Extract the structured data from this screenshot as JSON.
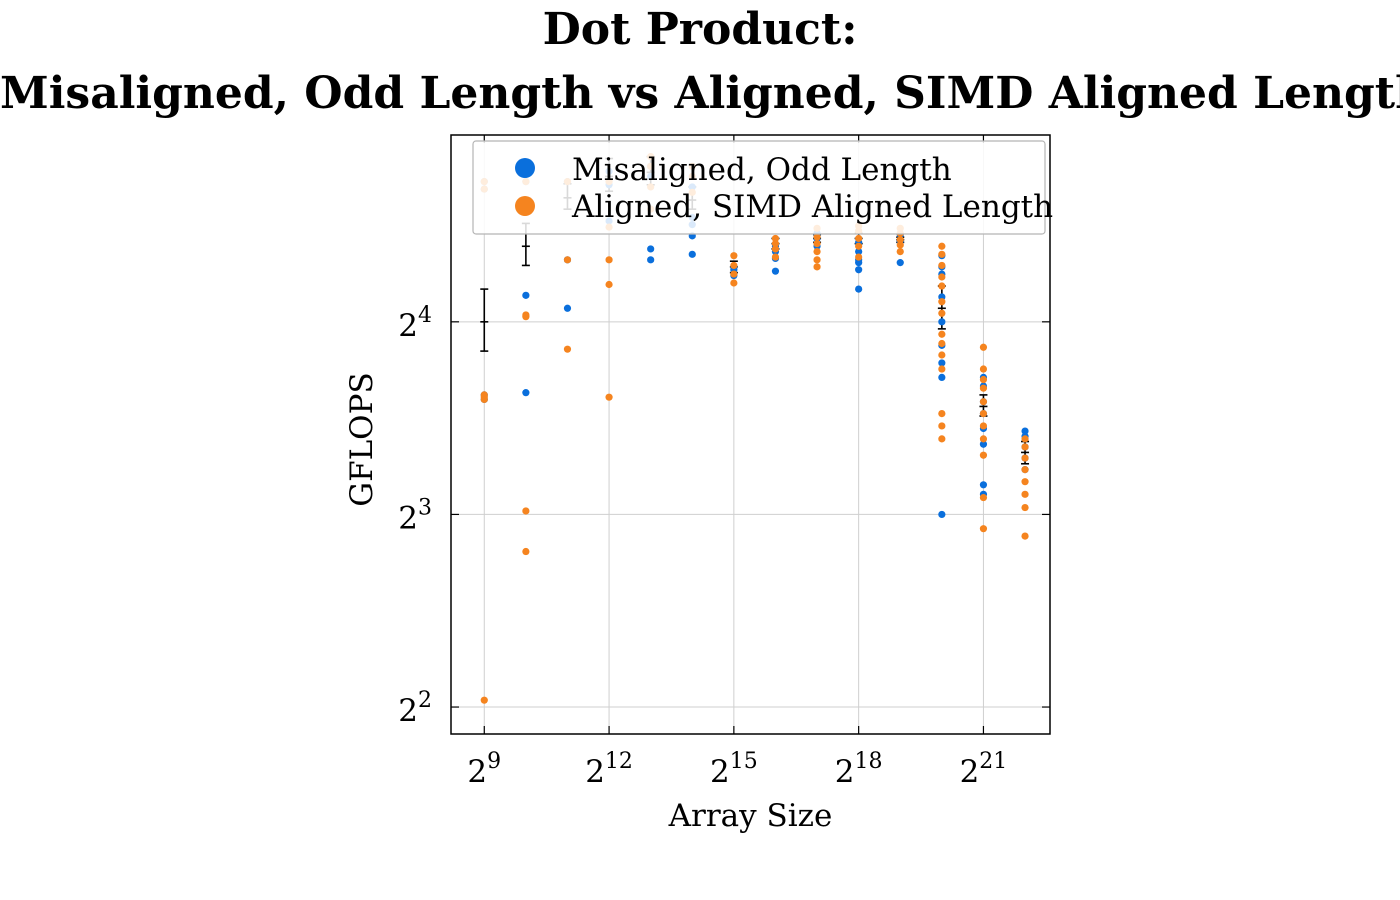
{
  "chart_data": {
    "type": "scatter",
    "title": "Dot Product:",
    "subtitle": "Misaligned, Odd Length vs Aligned, SIMD Aligned Length",
    "xlabel": "Array Size",
    "ylabel": "GFLOPS",
    "x_scale": "log2",
    "y_scale": "log2",
    "xlim_log2": [
      8.2,
      22.6
    ],
    "ylim_log2": [
      1.86,
      4.97
    ],
    "xticks": [
      {
        "base": "2",
        "exp": "9",
        "value": 512
      },
      {
        "base": "2",
        "exp": "12",
        "value": 4096
      },
      {
        "base": "2",
        "exp": "15",
        "value": 32768
      },
      {
        "base": "2",
        "exp": "18",
        "value": 262144
      },
      {
        "base": "2",
        "exp": "21",
        "value": 2097152
      }
    ],
    "yticks": [
      {
        "base": "2",
        "exp": "2",
        "value": 4
      },
      {
        "base": "2",
        "exp": "3",
        "value": 8
      },
      {
        "base": "2",
        "exp": "4",
        "value": 16
      }
    ],
    "grid": true,
    "legend_position": "top-right",
    "x": [
      512,
      1024,
      2048,
      4096,
      8192,
      16384,
      32768,
      65536,
      131072,
      262144,
      524288,
      1048576,
      2097152,
      4194304
    ],
    "series": [
      {
        "name": "Misaligned, Odd Length",
        "color": "#0a6fdc",
        "points": [
          [
            512,
            26.5
          ],
          [
            512,
            12.3
          ],
          [
            512,
            12.1
          ],
          [
            512,
            25.8
          ],
          [
            1024,
            12.4
          ],
          [
            1024,
            17.6
          ],
          [
            1024,
            26.5
          ],
          [
            2048,
            16.8
          ],
          [
            2048,
            20.0
          ],
          [
            2048,
            26.5
          ],
          [
            4096,
            26.2
          ],
          [
            4096,
            23.0
          ],
          [
            4096,
            27.5
          ],
          [
            8192,
            20.0
          ],
          [
            8192,
            20.8
          ],
          [
            8192,
            27.0
          ],
          [
            8192,
            28.0
          ],
          [
            16384,
            20.4
          ],
          [
            16384,
            21.8
          ],
          [
            16384,
            22.7
          ],
          [
            16384,
            23.3
          ],
          [
            16384,
            26.0
          ],
          [
            32768,
            18.9
          ],
          [
            32768,
            19.5
          ],
          [
            32768,
            19.3
          ],
          [
            65536,
            19.2
          ],
          [
            65536,
            20.1
          ],
          [
            65536,
            20.6
          ],
          [
            65536,
            21.0
          ],
          [
            131072,
            21.0
          ],
          [
            131072,
            21.6
          ],
          [
            131072,
            22.0
          ],
          [
            262144,
            18.0
          ],
          [
            262144,
            19.3
          ],
          [
            262144,
            19.8
          ],
          [
            262144,
            20.0
          ],
          [
            262144,
            20.6
          ],
          [
            262144,
            21.3
          ],
          [
            524288,
            19.8
          ],
          [
            524288,
            21.4
          ],
          [
            524288,
            21.9
          ],
          [
            1048576,
            8.0
          ],
          [
            1048576,
            13.1
          ],
          [
            1048576,
            13.8
          ],
          [
            1048576,
            14.7
          ],
          [
            1048576,
            16.0
          ],
          [
            1048576,
            17.5
          ],
          [
            1048576,
            19.0
          ],
          [
            1048576,
            19.5
          ],
          [
            1048576,
            20.3
          ],
          [
            2097152,
            8.6
          ],
          [
            2097152,
            8.9
          ],
          [
            2097152,
            10.3
          ],
          [
            2097152,
            10.9
          ],
          [
            2097152,
            11.5
          ],
          [
            2097152,
            12.0
          ],
          [
            2097152,
            12.7
          ],
          [
            2097152,
            13.1
          ],
          [
            4194304,
            9.4
          ],
          [
            4194304,
            9.8
          ],
          [
            4194304,
            10.2
          ],
          [
            4194304,
            10.6
          ],
          [
            4194304,
            10.8
          ]
        ]
      },
      {
        "name": "Aligned, SIMD Aligned Length",
        "color": "#f5841f",
        "points": [
          [
            512,
            4.1
          ],
          [
            512,
            12.1
          ],
          [
            512,
            12.2
          ],
          [
            512,
            12.3
          ],
          [
            512,
            25.8
          ],
          [
            512,
            26.5
          ],
          [
            1024,
            7.0
          ],
          [
            1024,
            8.1
          ],
          [
            1024,
            16.3
          ],
          [
            1024,
            16.4
          ],
          [
            1024,
            26.5
          ],
          [
            2048,
            14.5
          ],
          [
            2048,
            20.0
          ],
          [
            2048,
            26.5
          ],
          [
            4096,
            12.2
          ],
          [
            4096,
            18.3
          ],
          [
            4096,
            20.0
          ],
          [
            4096,
            22.5
          ],
          [
            4096,
            26.5
          ],
          [
            8192,
            24.0
          ],
          [
            8192,
            26.0
          ],
          [
            8192,
            28.0
          ],
          [
            8192,
            29.0
          ],
          [
            16384,
            25.5
          ],
          [
            16384,
            27.0
          ],
          [
            16384,
            28.0
          ],
          [
            32768,
            18.4
          ],
          [
            32768,
            19.0
          ],
          [
            32768,
            19.6
          ],
          [
            32768,
            20.3
          ],
          [
            65536,
            20.2
          ],
          [
            65536,
            20.8
          ],
          [
            65536,
            21.2
          ],
          [
            65536,
            21.6
          ],
          [
            131072,
            19.5
          ],
          [
            131072,
            20.0
          ],
          [
            131072,
            20.6
          ],
          [
            131072,
            21.2
          ],
          [
            131072,
            21.7
          ],
          [
            131072,
            22.4
          ],
          [
            262144,
            20.2
          ],
          [
            262144,
            21.0
          ],
          [
            262144,
            21.6
          ],
          [
            262144,
            22.2
          ],
          [
            262144,
            22.6
          ],
          [
            524288,
            20.6
          ],
          [
            524288,
            21.1
          ],
          [
            524288,
            21.5
          ],
          [
            524288,
            22.0
          ],
          [
            524288,
            22.4
          ],
          [
            1048576,
            10.5
          ],
          [
            1048576,
            11.0
          ],
          [
            1048576,
            11.5
          ],
          [
            1048576,
            13.5
          ],
          [
            1048576,
            14.2
          ],
          [
            1048576,
            14.8
          ],
          [
            1048576,
            15.3
          ],
          [
            1048576,
            16.5
          ],
          [
            1048576,
            17.2
          ],
          [
            1048576,
            18.2
          ],
          [
            1048576,
            18.8
          ],
          [
            1048576,
            19.6
          ],
          [
            1048576,
            20.4
          ],
          [
            1048576,
            21.0
          ],
          [
            2097152,
            7.6
          ],
          [
            2097152,
            8.5
          ],
          [
            2097152,
            9.9
          ],
          [
            2097152,
            10.5
          ],
          [
            2097152,
            11.0
          ],
          [
            2097152,
            11.5
          ],
          [
            2097152,
            12.0
          ],
          [
            2097152,
            12.6
          ],
          [
            2097152,
            13.0
          ],
          [
            2097152,
            13.5
          ],
          [
            2097152,
            14.6
          ],
          [
            4194304,
            7.4
          ],
          [
            4194304,
            8.2
          ],
          [
            4194304,
            8.6
          ],
          [
            4194304,
            9.0
          ],
          [
            4194304,
            9.4
          ],
          [
            4194304,
            9.8
          ],
          [
            4194304,
            10.2
          ],
          [
            4194304,
            10.5
          ]
        ]
      }
    ],
    "error_bars": [
      {
        "x": 512,
        "center": 16.0,
        "low": 14.4,
        "high": 18.0
      },
      {
        "x": 1024,
        "center": 21.0,
        "low": 19.6,
        "high": 22.8
      },
      {
        "x": 2048,
        "center": 25.0,
        "low": 24.0,
        "high": 26.3
      },
      {
        "x": 4096,
        "center": 27.0,
        "low": 25.6,
        "high": 28.8
      },
      {
        "x": 8192,
        "center": 27.4,
        "low": 26.2,
        "high": 29.0
      },
      {
        "x": 16384,
        "center": 24.8,
        "low": 24.0,
        "high": 26.0
      },
      {
        "x": 32768,
        "center": 19.5,
        "low": 19.1,
        "high": 19.9
      },
      {
        "x": 65536,
        "center": 21.2,
        "low": 20.8,
        "high": 21.6
      },
      {
        "x": 131072,
        "center": 21.6,
        "low": 21.3,
        "high": 21.9
      },
      {
        "x": 262144,
        "center": 21.6,
        "low": 21.2,
        "high": 22.0
      },
      {
        "x": 524288,
        "center": 21.5,
        "low": 21.3,
        "high": 21.7
      },
      {
        "x": 1048576,
        "center": 16.8,
        "low": 15.6,
        "high": 18.2
      },
      {
        "x": 2097152,
        "center": 11.8,
        "low": 11.4,
        "high": 12.3
      },
      {
        "x": 4194304,
        "center": 10.0,
        "low": 9.6,
        "high": 10.4
      }
    ]
  }
}
